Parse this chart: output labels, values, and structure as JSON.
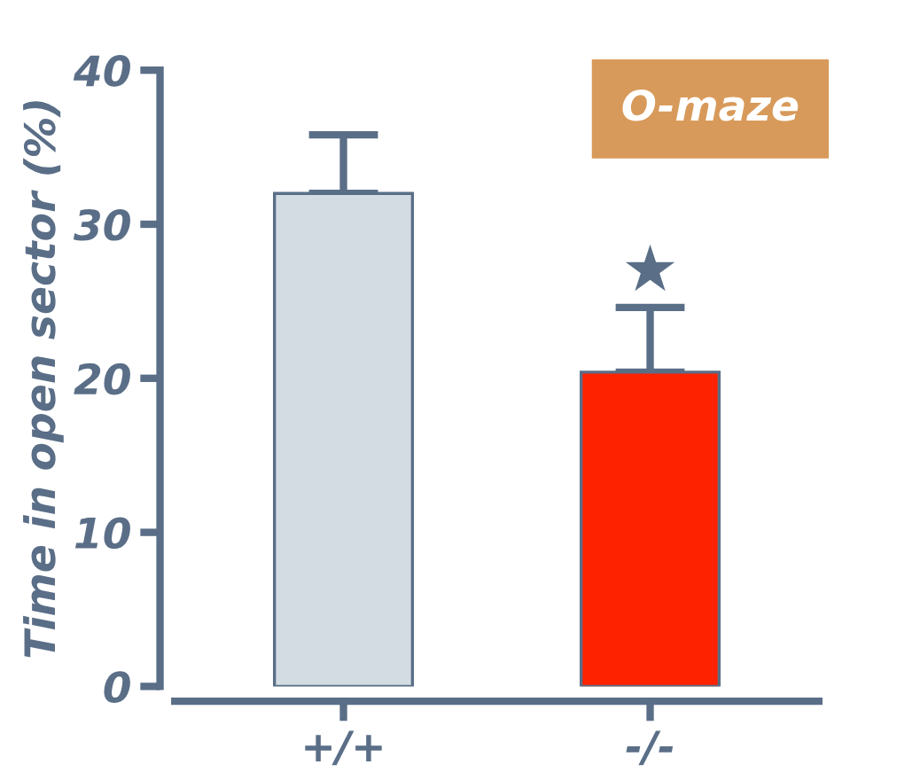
{
  "chart_data": {
    "type": "bar",
    "title": "O-maze",
    "ylabel": "Time in open sector (%)",
    "categories": [
      "+/+",
      "-/-"
    ],
    "values": [
      32,
      20.4
    ],
    "colors": [
      "#d3dbe3",
      "#ff2200"
    ],
    "errors": [
      [
        32,
        35.8
      ],
      [
        20.4,
        24.6
      ]
    ],
    "ylim": [
      0,
      40
    ],
    "yticks": [
      0,
      10,
      20,
      30,
      40
    ],
    "grid": false,
    "legend": false,
    "annotations": [
      "★"
    ]
  }
}
